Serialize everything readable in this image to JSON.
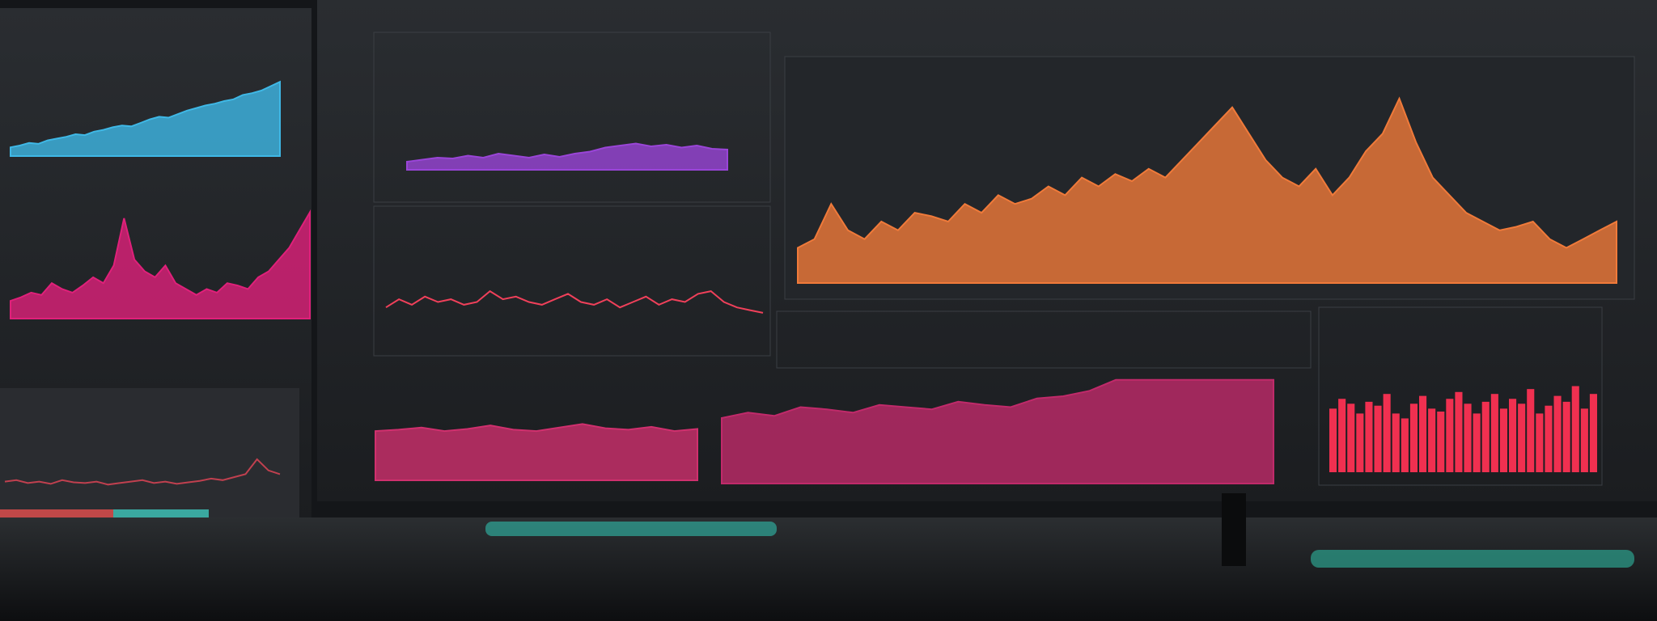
{
  "panels": [
    {
      "type": "area",
      "color": "#3fb8e6",
      "ylim": [
        0,
        100
      ],
      "values": [
        10,
        12,
        15,
        14,
        18,
        20,
        22,
        25,
        24,
        28,
        30,
        33,
        35,
        34,
        38,
        42,
        45,
        44,
        48,
        52,
        55,
        58,
        60,
        63,
        65,
        70,
        72,
        75,
        80,
        85
      ]
    },
    {
      "type": "area",
      "color": "#e0207a",
      "ylim": [
        0,
        100
      ],
      "values": [
        15,
        18,
        22,
        20,
        30,
        25,
        22,
        28,
        35,
        30,
        45,
        85,
        50,
        40,
        35,
        45,
        30,
        25,
        20,
        25,
        22,
        30,
        28,
        25,
        35,
        40,
        50,
        60,
        75,
        90
      ]
    },
    {
      "type": "line",
      "color": "#c0404f",
      "ylim": [
        0,
        100
      ],
      "values": [
        20,
        22,
        18,
        20,
        17,
        22,
        19,
        18,
        20,
        16,
        18,
        20,
        22,
        18,
        20,
        17,
        19,
        21,
        24,
        22,
        26,
        30,
        50,
        35,
        30
      ]
    },
    {
      "type": "area",
      "color": "#9a45d8",
      "ylim": [
        0,
        100
      ],
      "values": [
        20,
        25,
        30,
        28,
        35,
        30,
        40,
        35,
        30,
        38,
        32,
        40,
        45,
        55,
        60,
        65,
        58,
        62,
        55,
        60,
        52,
        50
      ]
    },
    {
      "type": "line",
      "color": "#f0405a",
      "ylim": [
        0,
        100
      ],
      "values": [
        40,
        55,
        45,
        60,
        50,
        55,
        45,
        50,
        70,
        55,
        60,
        50,
        45,
        55,
        65,
        50,
        45,
        55,
        40,
        50,
        60,
        45,
        55,
        50,
        65,
        70,
        50,
        40,
        35,
        30
      ]
    },
    {
      "type": "area",
      "color": "#f07a3a",
      "ylim": [
        0,
        110
      ],
      "values": [
        20,
        25,
        45,
        30,
        25,
        35,
        30,
        40,
        38,
        35,
        45,
        40,
        50,
        45,
        48,
        55,
        50,
        60,
        55,
        62,
        58,
        65,
        60,
        70,
        80,
        90,
        100,
        85,
        70,
        60,
        55,
        65,
        50,
        60,
        75,
        85,
        105,
        80,
        60,
        50,
        40,
        35,
        30,
        32,
        35,
        25,
        20,
        25,
        30,
        35
      ]
    },
    {
      "type": "area",
      "color": "#d0306e",
      "ylim": [
        0,
        100
      ],
      "values": [
        70,
        72,
        75,
        70,
        73,
        78,
        72,
        70,
        75,
        80,
        74,
        72,
        76,
        70,
        73
      ]
    },
    {
      "type": "area",
      "color": "#c02a6a",
      "ylim": [
        0,
        100
      ],
      "values": [
        60,
        65,
        62,
        70,
        68,
        65,
        72,
        70,
        68,
        75,
        72,
        70,
        78,
        80,
        85,
        95,
        95,
        95,
        95,
        95,
        95,
        95
      ]
    },
    {
      "type": "bar",
      "color": "#f03050",
      "ylim": [
        0,
        100
      ],
      "values": [
        65,
        75,
        70,
        60,
        72,
        68,
        80,
        60,
        55,
        70,
        78,
        65,
        62,
        75,
        82,
        70,
        60,
        72,
        80,
        65,
        75,
        70,
        85,
        60,
        68,
        78,
        72,
        88,
        65,
        80
      ]
    }
  ]
}
